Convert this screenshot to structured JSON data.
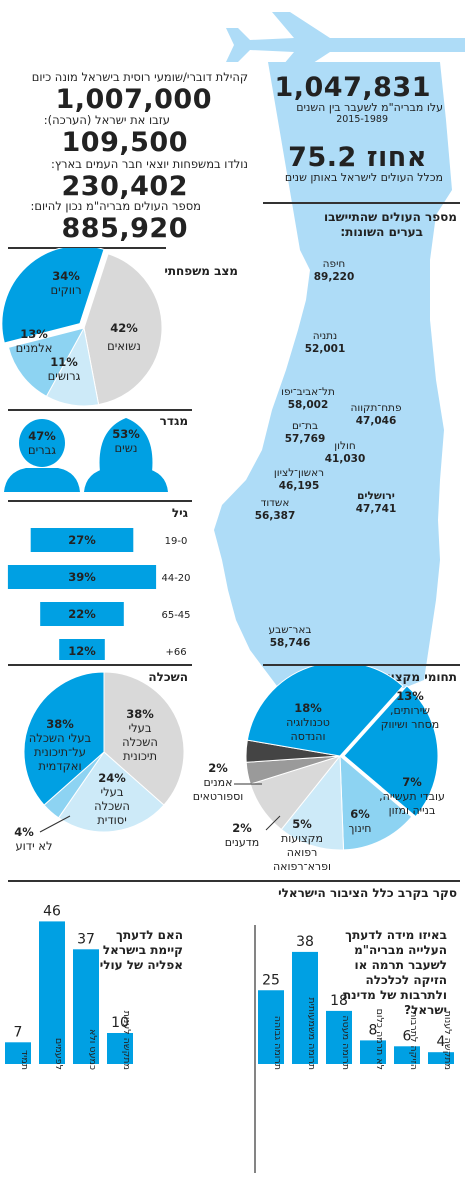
{
  "colors": {
    "blue": "#00a0e3",
    "light_blue": "#8dd3f2",
    "pale_blue": "#cdeaf8",
    "grey": "#d9d9d9",
    "dark": "#444444",
    "map": "#aedcf7"
  },
  "header": {
    "speakers_label": "קהילת דוברי/שומעי רוסית בישראל מונה כיום",
    "speakers_value": "1,007,000",
    "left_label": "עזבו את ישראל (הערכה):",
    "left_value": "109,500",
    "born_label": "נולדו במשפחות יוצאי חבר העמים בארץ:",
    "born_value": "230,402",
    "current_label": "מספר העולים מבריה\"מ נכון להיום:",
    "current_value": "885,920",
    "olim_value": "1,047,831",
    "olim_label_1": "עלו מבריה\"מ לשעבר בין השנים",
    "olim_label_2": "2015-1989",
    "percent_value": "75.2 אחוז",
    "percent_label": "מכלל העולים לישראל באותן שנים"
  },
  "map": {
    "title_1": "מספר העולים שהתיישבו",
    "title_2": "בערים השונות:",
    "cities": [
      {
        "name": "חיפה",
        "value": "89,220"
      },
      {
        "name": "נתניה",
        "value": "52,001"
      },
      {
        "name": "תל־אביב־יפו",
        "value": "58,002"
      },
      {
        "name": "פתח־תקווה",
        "value": "47,046"
      },
      {
        "name": "בת־ים",
        "value": "57,769"
      },
      {
        "name": "חולון",
        "value": "41,030"
      },
      {
        "name": "ראשון־לציון",
        "value": "46,195"
      },
      {
        "name": "ירושלים",
        "value": "47,741"
      },
      {
        "name": "אשדוד",
        "value": "56,387"
      },
      {
        "name": "באר־שבע",
        "value": "58,746"
      }
    ]
  },
  "chart_data": [
    {
      "type": "pie",
      "title": "מצב משפחתי",
      "slices": [
        {
          "label": "נשואים",
          "value": 42
        },
        {
          "label": "גרושים",
          "value": 11
        },
        {
          "label": "אלמנים",
          "value": 13
        },
        {
          "label": "רווקים",
          "value": 34
        }
      ]
    },
    {
      "type": "pie",
      "title": "מגדר",
      "slices": [
        {
          "label": "נשים",
          "value": 53
        },
        {
          "label": "גברים",
          "value": 47
        }
      ]
    },
    {
      "type": "bar",
      "title": "גיל",
      "categories": [
        "19-0",
        "44-20",
        "65-45",
        "66+"
      ],
      "values": [
        27,
        39,
        22,
        12
      ]
    },
    {
      "type": "pie",
      "title": "השכלה",
      "slices": [
        {
          "label": "בעלי השכלה תיכונית",
          "value": 38
        },
        {
          "label": "בעלי השכלה יסודית",
          "value": 24
        },
        {
          "label": "לא ידוע",
          "value": 4
        },
        {
          "label": "בעלי השכלה על־תיכונית ואקדמית",
          "value": 38
        }
      ]
    },
    {
      "type": "pie",
      "title": "תחומי מקצוע עיקריים",
      "slices": [
        {
          "label": "שירותים, מסחר ושיווק",
          "value": 13
        },
        {
          "label": "עובדי תעשייה, בנייה ומזון",
          "value": 7
        },
        {
          "label": "חינוך",
          "value": 6
        },
        {
          "label": "מקצועות רפואה ופרא־רפואה",
          "value": 5
        },
        {
          "label": "מדענים",
          "value": 2
        },
        {
          "label": "אמנים וספורטאים",
          "value": 2
        },
        {
          "label": "טכנולוגיה והנדסה",
          "value": 18
        }
      ]
    },
    {
      "type": "bar",
      "title": "האם לדעתך קיימת בישראל אפליה של עולים?",
      "categories": [
        "תמיד",
        "לפעמים",
        "כמעט ולא",
        "מתקשה לענות"
      ],
      "values": [
        7,
        46,
        37,
        10
      ]
    },
    {
      "type": "bar",
      "title": "באיזו מידה לדעתך העלייה מבריה\"מ לשעבר תרמה או הזיקה לכלכלה ולתרבות של מדינת ישראל?",
      "categories": [
        "תרומה גבוהה",
        "תרומה משמעותית",
        "תרומה מעטה",
        "לא תרמה כלום",
        "הזיקה לתרבות",
        "מתקשה לענות"
      ],
      "values": [
        25,
        38,
        18,
        8,
        6,
        4
      ]
    }
  ],
  "labels": {
    "survey_title": "סקר בקרב כלל הציבור הישראלי",
    "q1_1": "האם לדעתך",
    "q1_2": "קיימת בישראל",
    "q1_3": "אפליה של עולים?",
    "q2_1": "באיזו מידה לדעתך",
    "q2_2": "העלייה מבריה\"מ",
    "q2_3": "לשעבר תרמה או",
    "q2_4": "הזיקה לכלכלה",
    "q2_5": "ולתרבות של מדינת",
    "q2_6": "ישראל?"
  }
}
